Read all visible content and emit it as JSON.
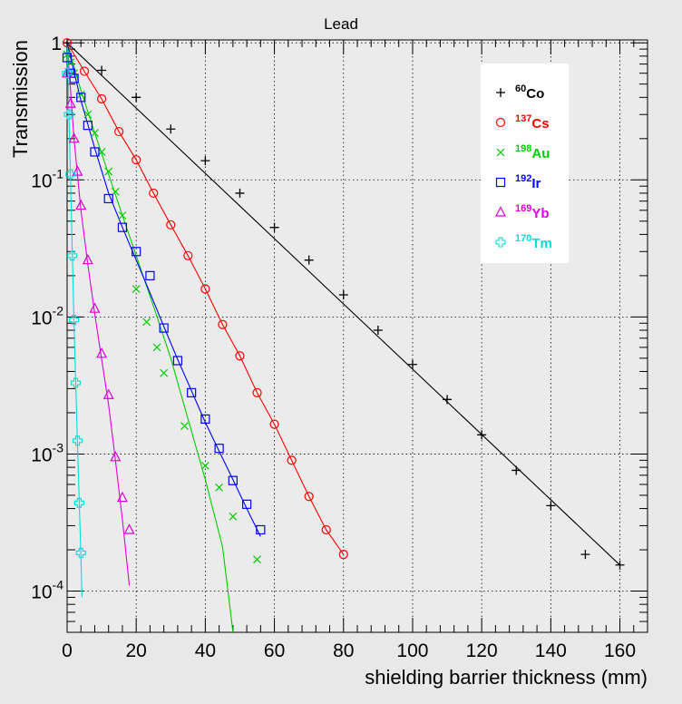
{
  "chart_data": {
    "type": "scatter",
    "title": "Lead",
    "xlabel": "shielding barrier thickness (mm)",
    "ylabel": "Transmission",
    "xlim": [
      0,
      168
    ],
    "ylim": [
      5e-05,
      1.05
    ],
    "y_scale": "log",
    "grid": true,
    "legend_position": "top-right",
    "x_ticks": [
      "0",
      "20",
      "40",
      "60",
      "80",
      "100",
      "120",
      "140",
      "160"
    ],
    "x_tick_values": [
      0,
      20,
      40,
      60,
      80,
      100,
      120,
      140,
      160
    ],
    "y_ticks": [
      {
        "value": 1,
        "base": "1",
        "exp": ""
      },
      {
        "value": 0.1,
        "base": "10",
        "exp": "-1"
      },
      {
        "value": 0.01,
        "base": "10",
        "exp": "-2"
      },
      {
        "value": 0.001,
        "base": "10",
        "exp": "-3"
      },
      {
        "value": 0.0001,
        "base": "10",
        "exp": "-4"
      }
    ],
    "series": [
      {
        "name": "60Co",
        "label_sup": "60",
        "label_el": "Co",
        "color": "#000000",
        "marker": "plus",
        "x": [
          0,
          10,
          20,
          30,
          40,
          50,
          60,
          70,
          80,
          90,
          100,
          110,
          120,
          130,
          140,
          150,
          160
        ],
        "y": [
          1.0,
          0.63,
          0.4,
          0.235,
          0.138,
          0.08,
          0.045,
          0.026,
          0.0145,
          0.008,
          0.0045,
          0.0025,
          0.00138,
          0.00076,
          0.00042,
          0.000185,
          0.000155
        ],
        "fit_x": [
          0,
          160
        ],
        "fit_y": [
          1.0,
          0.000155
        ]
      },
      {
        "name": "137Cs",
        "label_sup": "137",
        "label_el": "Cs",
        "color": "#ff0000",
        "marker": "circle",
        "x": [
          0,
          5,
          10,
          15,
          20,
          25,
          30,
          35,
          40,
          45,
          50,
          55,
          60,
          65,
          70,
          75,
          80
        ],
        "y": [
          1.0,
          0.62,
          0.39,
          0.225,
          0.14,
          0.08,
          0.047,
          0.028,
          0.016,
          0.0088,
          0.0052,
          0.0028,
          0.00165,
          0.0009,
          0.00049,
          0.00028,
          0.000185
        ],
        "fit_x": [
          0,
          5,
          10,
          15,
          20,
          25,
          30,
          35,
          40,
          45,
          50,
          55,
          60,
          65,
          70,
          75,
          80
        ],
        "fit_y": [
          1.0,
          0.62,
          0.39,
          0.225,
          0.14,
          0.08,
          0.047,
          0.028,
          0.016,
          0.0088,
          0.0052,
          0.0028,
          0.00165,
          0.0009,
          0.00049,
          0.00028,
          0.000185
        ]
      },
      {
        "name": "198Au",
        "label_sup": "198",
        "label_el": "Au",
        "color": "#00cc00",
        "marker": "x",
        "x": [
          0,
          1,
          2,
          4,
          6,
          8,
          10,
          12,
          14,
          16,
          20,
          23,
          26,
          28,
          34,
          40,
          44,
          48,
          55
        ],
        "y": [
          0.82,
          0.72,
          0.6,
          0.42,
          0.3,
          0.22,
          0.16,
          0.115,
          0.082,
          0.055,
          0.016,
          0.0092,
          0.006,
          0.0039,
          0.0016,
          0.00082,
          0.00057,
          0.00035,
          0.00017
        ],
        "fit_x": [
          0,
          4,
          8,
          12,
          16,
          20,
          25,
          30,
          35,
          40,
          45,
          48
        ],
        "fit_y": [
          1.0,
          0.45,
          0.22,
          0.11,
          0.055,
          0.028,
          0.012,
          0.005,
          0.0018,
          0.00065,
          0.00021,
          5e-05
        ]
      },
      {
        "name": "192Ir",
        "label_sup": "192",
        "label_el": "Ir",
        "color": "#0000ff",
        "marker": "square",
        "x": [
          0,
          1,
          2,
          4,
          6,
          8,
          12,
          16,
          20,
          24,
          28,
          32,
          36,
          40,
          44,
          48,
          52,
          56
        ],
        "y": [
          0.78,
          0.6,
          0.55,
          0.4,
          0.25,
          0.16,
          0.073,
          0.045,
          0.03,
          0.02,
          0.0083,
          0.0048,
          0.0028,
          0.0018,
          0.0011,
          0.00064,
          0.00043,
          0.00028
        ],
        "fit_x": [
          0,
          4,
          8,
          12,
          16,
          20,
          24,
          28,
          32,
          36,
          40,
          44,
          48,
          52,
          56
        ],
        "fit_y": [
          1.0,
          0.38,
          0.17,
          0.08,
          0.045,
          0.026,
          0.015,
          0.0085,
          0.0049,
          0.0029,
          0.0017,
          0.00105,
          0.00065,
          0.0004,
          0.00025
        ]
      },
      {
        "name": "169Yb",
        "label_sup": "169",
        "label_el": "Yb",
        "color": "#dd00dd",
        "marker": "triangle",
        "x": [
          0,
          1,
          2,
          3,
          4,
          6,
          8,
          10,
          12,
          14,
          16,
          18
        ],
        "y": [
          0.6,
          0.36,
          0.2,
          0.115,
          0.065,
          0.026,
          0.0115,
          0.0054,
          0.0027,
          0.00095,
          0.00048,
          0.00028
        ],
        "fit_x": [
          0,
          2,
          4,
          6,
          8,
          10,
          12,
          14,
          16,
          18
        ],
        "fit_y": [
          1.0,
          0.2,
          0.06,
          0.024,
          0.0105,
          0.0049,
          0.0023,
          0.0009,
          0.00033,
          0.00011
        ]
      },
      {
        "name": "170Tm",
        "label_sup": "170",
        "label_el": "Tm",
        "color": "#00dddd",
        "marker": "cross",
        "x": [
          0,
          0.5,
          1,
          1.5,
          2,
          2.5,
          3,
          3.5,
          4
        ],
        "y": [
          0.6,
          0.3,
          0.11,
          0.028,
          0.0095,
          0.0033,
          0.00125,
          0.00044,
          0.00019
        ],
        "fit_x": [
          0,
          1,
          2,
          3,
          4,
          4.3
        ],
        "fit_y": [
          1.0,
          0.1,
          0.009,
          0.0012,
          0.00018,
          9e-05
        ]
      }
    ]
  }
}
